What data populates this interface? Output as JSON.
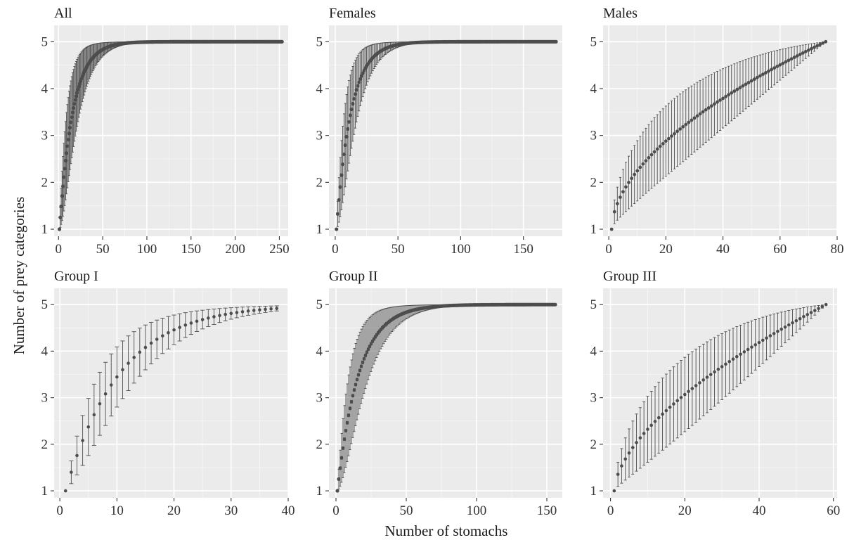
{
  "figure": {
    "xlabel": "Number of stomachs",
    "ylabel": "Number of prey categories"
  },
  "chart_data": [
    {
      "type": "scatter",
      "title": "All",
      "n": 253,
      "xlim": [
        -5,
        260
      ],
      "ylim": [
        0.85,
        5.35
      ],
      "xticks": [
        0,
        50,
        100,
        150,
        200,
        250
      ],
      "yticks": [
        1,
        2,
        3,
        4,
        5
      ],
      "curve": {
        "kind": "exp",
        "k": 0.065,
        "sd_peak": 0.9
      },
      "x_range": [
        1,
        253
      ],
      "y_range": [
        1,
        5
      ],
      "error_bars": "mean ± sd"
    },
    {
      "type": "scatter",
      "title": "Females",
      "n": 176,
      "xlim": [
        -5,
        181
      ],
      "ylim": [
        0.85,
        5.35
      ],
      "xticks": [
        0,
        50,
        100,
        150
      ],
      "yticks": [
        1,
        2,
        3,
        4,
        5
      ],
      "curve": {
        "kind": "exp",
        "k": 0.085,
        "sd_peak": 0.9
      },
      "x_range": [
        1,
        176
      ],
      "y_range": [
        1,
        5
      ],
      "error_bars": "mean ± sd"
    },
    {
      "type": "scatter",
      "title": "Males",
      "n": 76,
      "xlim": [
        -2,
        80
      ],
      "ylim": [
        0.85,
        5.35
      ],
      "xticks": [
        0,
        20,
        40,
        60,
        80
      ],
      "yticks": [
        1,
        2,
        3,
        4,
        5
      ],
      "curve": {
        "kind": "saturating",
        "shape": 0.55,
        "sd_peak": 0.75
      },
      "x_range": [
        1,
        76
      ],
      "y_range": [
        1,
        5
      ],
      "error_bars": "mean ± sd"
    },
    {
      "type": "scatter",
      "title": "Group I",
      "n": 38,
      "xlim": [
        -1,
        40
      ],
      "ylim": [
        0.85,
        5.35
      ],
      "xticks": [
        0,
        10,
        20,
        30,
        40
      ],
      "yticks": [
        1,
        2,
        3,
        4,
        5
      ],
      "curve": {
        "kind": "exp",
        "k": 0.105,
        "sd_peak": 0.68
      },
      "x_range": [
        1,
        38
      ],
      "y_range": [
        1,
        5
      ],
      "error_bars": "mean ± sd"
    },
    {
      "type": "scatter",
      "title": "Group II",
      "n": 156,
      "xlim": [
        -5,
        161
      ],
      "ylim": [
        0.85,
        5.35
      ],
      "xticks": [
        0,
        50,
        100,
        150
      ],
      "yticks": [
        1,
        2,
        3,
        4,
        5
      ],
      "curve": {
        "kind": "exp",
        "k": 0.065,
        "sd_peak": 0.9
      },
      "x_range": [
        1,
        156
      ],
      "y_range": [
        1,
        5
      ],
      "error_bars": "mean ± sd"
    },
    {
      "type": "scatter",
      "title": "Group III",
      "n": 58,
      "xlim": [
        -2,
        61
      ],
      "ylim": [
        0.85,
        5.35
      ],
      "xticks": [
        0,
        20,
        40,
        60
      ],
      "yticks": [
        1,
        2,
        3,
        4,
        5
      ],
      "curve": {
        "kind": "saturating",
        "shape": 0.6,
        "sd_peak": 0.8
      },
      "x_range": [
        1,
        58
      ],
      "y_range": [
        1,
        5
      ],
      "error_bars": "mean ± sd"
    }
  ]
}
